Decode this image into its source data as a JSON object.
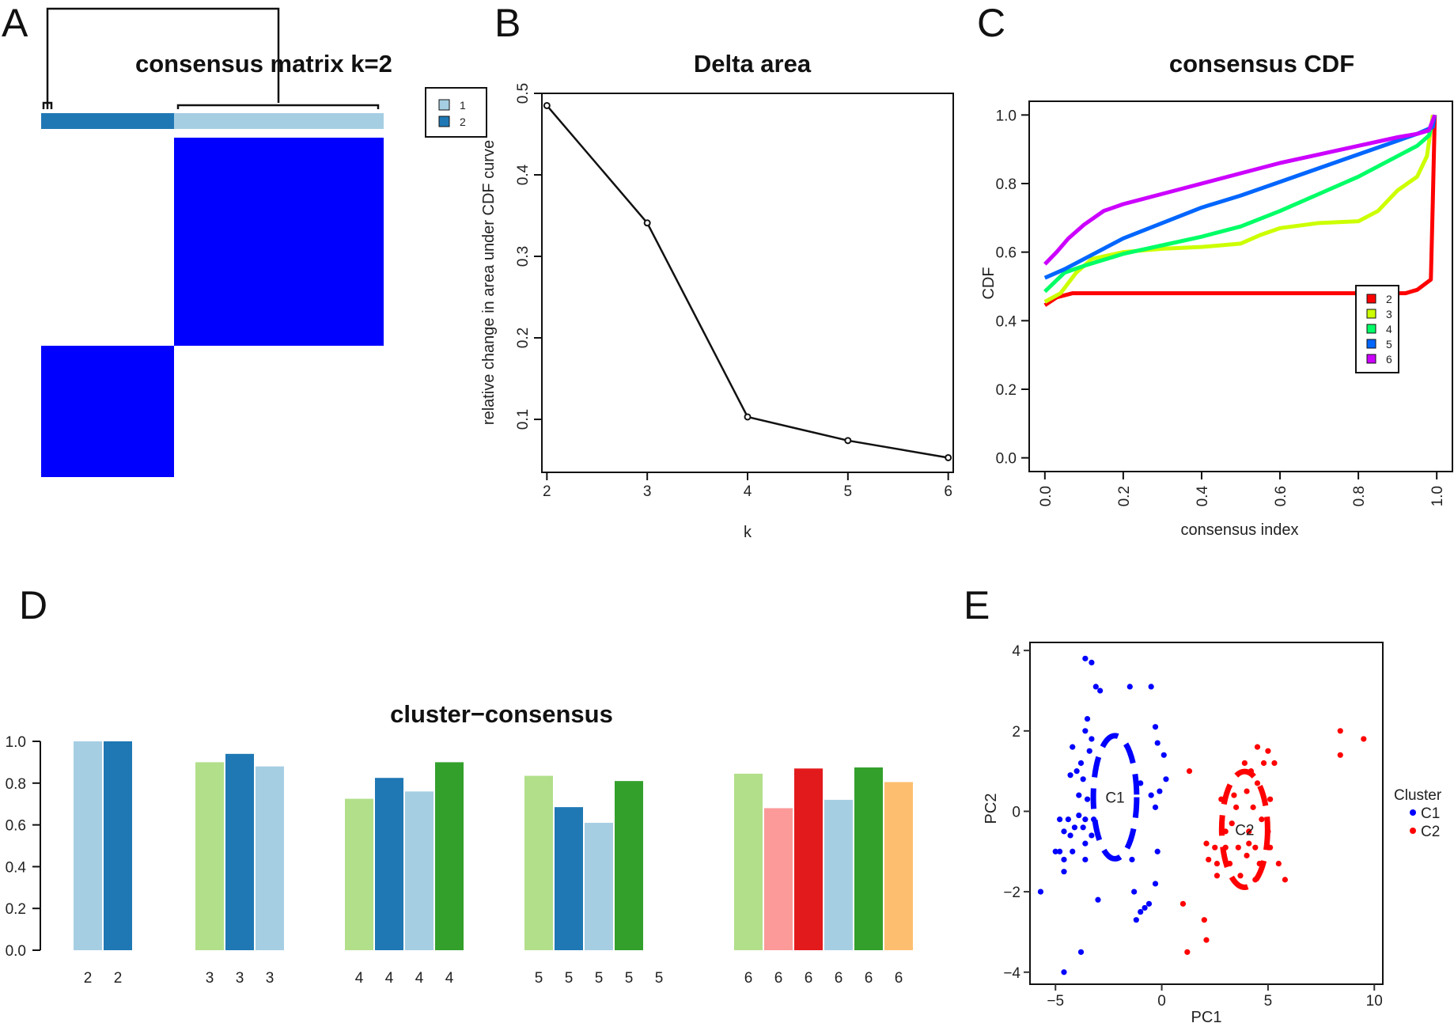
{
  "panel_letters": [
    "A",
    "B",
    "C",
    "D",
    "E"
  ],
  "chart_data": [
    {
      "panel": "A",
      "type": "heatmap",
      "title": "consensus matrix k=2",
      "legend": [
        "1",
        "2"
      ],
      "colors": {
        "cluster1": "#a6cee3",
        "cluster2": "#1f78b4",
        "consensus": "#0000ff",
        "background": "#ffffff"
      },
      "cluster_order": [
        "2",
        "1"
      ],
      "cluster_sizes": [
        0.387,
        0.613
      ]
    },
    {
      "panel": "B",
      "type": "line",
      "title": "Delta area",
      "xlabel": "k",
      "ylabel": "relative change in area under CDF curve",
      "x": [
        2,
        3,
        4,
        5,
        6
      ],
      "y": [
        0.485,
        0.341,
        0.103,
        0.074,
        0.053
      ],
      "xticks": [
        "2",
        "3",
        "4",
        "5",
        "6"
      ],
      "yticks": [
        "0.1",
        "0.2",
        "0.3",
        "0.4",
        "0.5"
      ],
      "xlim": [
        1.95,
        6.05
      ],
      "ylim": [
        0.035,
        0.5
      ]
    },
    {
      "panel": "C",
      "type": "line",
      "title": "consensus CDF",
      "xlabel": "consensus index",
      "ylabel": "CDF",
      "xticks": [
        "0.0",
        "0.2",
        "0.4",
        "0.6",
        "0.8",
        "1.0"
      ],
      "yticks": [
        "0.0",
        "0.2",
        "0.4",
        "0.6",
        "0.8",
        "1.0"
      ],
      "xlim": [
        -0.04,
        1.04
      ],
      "ylim": [
        -0.04,
        1.04
      ],
      "legend": [
        "2",
        "3",
        "4",
        "5",
        "6"
      ],
      "series": [
        {
          "name": "2",
          "color": "#ff0000",
          "points": [
            [
              0,
              0.445
            ],
            [
              0.03,
              0.468
            ],
            [
              0.07,
              0.48
            ],
            [
              0.5,
              0.48
            ],
            [
              0.92,
              0.48
            ],
            [
              0.95,
              0.49
            ],
            [
              0.985,
              0.52
            ],
            [
              0.99,
              0.75
            ],
            [
              0.995,
              1.0
            ]
          ]
        },
        {
          "name": "3",
          "color": "#ccff00",
          "points": [
            [
              0,
              0.455
            ],
            [
              0.04,
              0.48
            ],
            [
              0.08,
              0.54
            ],
            [
              0.12,
              0.58
            ],
            [
              0.2,
              0.6
            ],
            [
              0.3,
              0.61
            ],
            [
              0.4,
              0.615
            ],
            [
              0.5,
              0.625
            ],
            [
              0.55,
              0.65
            ],
            [
              0.6,
              0.67
            ],
            [
              0.7,
              0.685
            ],
            [
              0.8,
              0.69
            ],
            [
              0.85,
              0.72
            ],
            [
              0.9,
              0.78
            ],
            [
              0.95,
              0.82
            ],
            [
              0.975,
              0.88
            ],
            [
              0.99,
              1.0
            ]
          ]
        },
        {
          "name": "4",
          "color": "#00ff66",
          "points": [
            [
              0,
              0.485
            ],
            [
              0.05,
              0.54
            ],
            [
              0.1,
              0.56
            ],
            [
              0.2,
              0.595
            ],
            [
              0.3,
              0.62
            ],
            [
              0.4,
              0.645
            ],
            [
              0.5,
              0.675
            ],
            [
              0.6,
              0.72
            ],
            [
              0.7,
              0.77
            ],
            [
              0.8,
              0.82
            ],
            [
              0.9,
              0.88
            ],
            [
              0.95,
              0.91
            ],
            [
              0.98,
              0.94
            ],
            [
              0.995,
              1.0
            ]
          ]
        },
        {
          "name": "5",
          "color": "#0066ff",
          "points": [
            [
              0,
              0.525
            ],
            [
              0.05,
              0.55
            ],
            [
              0.1,
              0.58
            ],
            [
              0.2,
              0.64
            ],
            [
              0.3,
              0.685
            ],
            [
              0.4,
              0.73
            ],
            [
              0.5,
              0.765
            ],
            [
              0.6,
              0.805
            ],
            [
              0.7,
              0.845
            ],
            [
              0.8,
              0.885
            ],
            [
              0.9,
              0.925
            ],
            [
              0.95,
              0.945
            ],
            [
              0.99,
              0.965
            ],
            [
              0.995,
              1.0
            ]
          ]
        },
        {
          "name": "6",
          "color": "#cc00ff",
          "points": [
            [
              0,
              0.565
            ],
            [
              0.03,
              0.6
            ],
            [
              0.06,
              0.64
            ],
            [
              0.1,
              0.68
            ],
            [
              0.15,
              0.72
            ],
            [
              0.2,
              0.74
            ],
            [
              0.3,
              0.77
            ],
            [
              0.4,
              0.8
            ],
            [
              0.5,
              0.83
            ],
            [
              0.6,
              0.86
            ],
            [
              0.7,
              0.885
            ],
            [
              0.8,
              0.91
            ],
            [
              0.9,
              0.935
            ],
            [
              0.95,
              0.945
            ],
            [
              0.98,
              0.955
            ],
            [
              0.995,
              1.0
            ]
          ]
        }
      ]
    },
    {
      "panel": "D",
      "type": "bar",
      "title": "cluster−consensus",
      "yticks": [
        "0.0",
        "0.2",
        "0.4",
        "0.6",
        "0.8",
        "1.0"
      ],
      "ylim": [
        0,
        1.02
      ],
      "groups": [
        {
          "k": "2",
          "labels": [
            "2",
            "2"
          ],
          "values": [
            1.0,
            1.0
          ],
          "colors": [
            "#a6cee3",
            "#1f78b4"
          ]
        },
        {
          "k": "3",
          "labels": [
            "3",
            "3",
            "3"
          ],
          "values": [
            0.9,
            0.94,
            0.88
          ],
          "colors": [
            "#b2df8a",
            "#1f78b4",
            "#a6cee3"
          ]
        },
        {
          "k": "4",
          "labels": [
            "4",
            "4",
            "4",
            "4"
          ],
          "values": [
            0.725,
            0.825,
            0.76,
            0.9
          ],
          "colors": [
            "#b2df8a",
            "#1f78b4",
            "#a6cee3",
            "#33a02c"
          ]
        },
        {
          "k": "5",
          "labels": [
            "5",
            "5",
            "5",
            "5",
            "5"
          ],
          "values": [
            0.835,
            0.685,
            0.61,
            0.81,
            0
          ],
          "colors": [
            "#b2df8a",
            "#1f78b4",
            "#a6cee3",
            "#33a02c",
            "#ffffff"
          ]
        },
        {
          "k": "6",
          "labels": [
            "6",
            "6",
            "6",
            "6",
            "6",
            "6"
          ],
          "values": [
            0.845,
            0.68,
            0.87,
            0.72,
            0.875,
            0.805
          ],
          "colors": [
            "#b2df8a",
            "#fb9a99",
            "#e31a1c",
            "#a6cee3",
            "#33a02c",
            "#fdbf6f"
          ]
        }
      ]
    },
    {
      "panel": "E",
      "type": "scatter",
      "xlabel": "PC1",
      "ylabel": "PC2",
      "xticks": [
        "−5",
        "0",
        "5",
        "10"
      ],
      "yticks": [
        "−4",
        "−2",
        "0",
        "2",
        "4"
      ],
      "xlim": [
        -6.2,
        10.4
      ],
      "ylim": [
        -4.3,
        4.2
      ],
      "legend_title": "Cluster",
      "legend": [
        "C1",
        "C2"
      ],
      "series": [
        {
          "name": "C1",
          "color": "#0000ff",
          "label": "C1",
          "ellipse": {
            "cx": -2.2,
            "cy": 0.35,
            "rx": 1.7,
            "ry": 1.7
          },
          "points": [
            [
              -3.6,
              3.8
            ],
            [
              -3.3,
              3.7
            ],
            [
              -3.1,
              3.1
            ],
            [
              -2.9,
              3.0
            ],
            [
              -1.5,
              3.1
            ],
            [
              -0.5,
              3.1
            ],
            [
              -3.5,
              2.3
            ],
            [
              -3.6,
              2.0
            ],
            [
              -3.3,
              1.8
            ],
            [
              -3.4,
              1.5
            ],
            [
              -3.8,
              1.2
            ],
            [
              -4.2,
              1.6
            ],
            [
              -4.0,
              1.0
            ],
            [
              -3.7,
              0.8
            ],
            [
              -0.3,
              2.1
            ],
            [
              -0.2,
              1.7
            ],
            [
              0.1,
              1.4
            ],
            [
              0.2,
              0.8
            ],
            [
              -0.1,
              0.5
            ],
            [
              -4.3,
              0.9
            ],
            [
              -3.9,
              0.4
            ],
            [
              -3.5,
              0.3
            ],
            [
              -3.9,
              -0.1
            ],
            [
              -3.6,
              -0.2
            ],
            [
              -3.2,
              -0.2
            ],
            [
              -4.4,
              -0.2
            ],
            [
              -4.1,
              -0.4
            ],
            [
              -3.7,
              -0.4
            ],
            [
              -4.3,
              -0.6
            ],
            [
              -3.6,
              -0.8
            ],
            [
              -3.3,
              -0.6
            ],
            [
              -4.8,
              -0.2
            ],
            [
              -4.6,
              -0.5
            ],
            [
              -5.0,
              -1.0
            ],
            [
              -4.8,
              -1.0
            ],
            [
              -4.6,
              -1.2
            ],
            [
              -4.2,
              -1.0
            ],
            [
              -3.6,
              -1.2
            ],
            [
              -0.2,
              -1.0
            ],
            [
              -0.3,
              -1.8
            ],
            [
              -1.4,
              -1.2
            ],
            [
              -1.3,
              -2.0
            ],
            [
              -4.6,
              -1.5
            ],
            [
              -3.0,
              -2.2
            ],
            [
              -0.6,
              -2.3
            ],
            [
              -0.8,
              -2.4
            ],
            [
              -1.0,
              -2.5
            ],
            [
              -1.2,
              -2.7
            ],
            [
              -0.3,
              0.1
            ],
            [
              -0.5,
              0.4
            ],
            [
              -1.0,
              0.7
            ],
            [
              -5.7,
              -2.0
            ],
            [
              -3.8,
              -3.5
            ],
            [
              -4.6,
              -4.0
            ]
          ]
        },
        {
          "name": "C2",
          "color": "#ff0000",
          "label": "C2",
          "ellipse": {
            "cx": 3.9,
            "cy": -0.45,
            "rx": 1.8,
            "ry": 1.6
          },
          "points": [
            [
              4.5,
              1.6
            ],
            [
              5.0,
              1.5
            ],
            [
              4.8,
              1.2
            ],
            [
              5.3,
              1.2
            ],
            [
              3.9,
              1.2
            ],
            [
              4.2,
              1.0
            ],
            [
              1.3,
              1.0
            ],
            [
              4.5,
              0.7
            ],
            [
              4.0,
              0.5
            ],
            [
              3.4,
              0.4
            ],
            [
              2.8,
              0.3
            ],
            [
              3.5,
              0.1
            ],
            [
              4.3,
              0.1
            ],
            [
              5.1,
              0.3
            ],
            [
              4.7,
              -0.2
            ],
            [
              3.3,
              -0.3
            ],
            [
              3.0,
              -0.5
            ],
            [
              4.1,
              -0.5
            ],
            [
              5.0,
              -0.5
            ],
            [
              2.1,
              -0.8
            ],
            [
              2.5,
              -0.9
            ],
            [
              3.0,
              -0.9
            ],
            [
              3.6,
              -0.9
            ],
            [
              4.1,
              -0.8
            ],
            [
              4.4,
              -0.9
            ],
            [
              5.1,
              -0.9
            ],
            [
              2.2,
              -1.2
            ],
            [
              2.6,
              -1.3
            ],
            [
              3.2,
              -1.3
            ],
            [
              4.0,
              -1.1
            ],
            [
              4.6,
              -1.3
            ],
            [
              5.5,
              -1.3
            ],
            [
              2.6,
              -1.6
            ],
            [
              3.7,
              -1.6
            ],
            [
              4.4,
              -1.7
            ],
            [
              5.8,
              -1.7
            ],
            [
              1.0,
              -2.3
            ],
            [
              2.0,
              -2.7
            ],
            [
              2.1,
              -3.2
            ],
            [
              1.2,
              -3.5
            ],
            [
              8.4,
              2.0
            ],
            [
              9.5,
              1.8
            ],
            [
              8.4,
              1.4
            ]
          ]
        }
      ]
    }
  ]
}
